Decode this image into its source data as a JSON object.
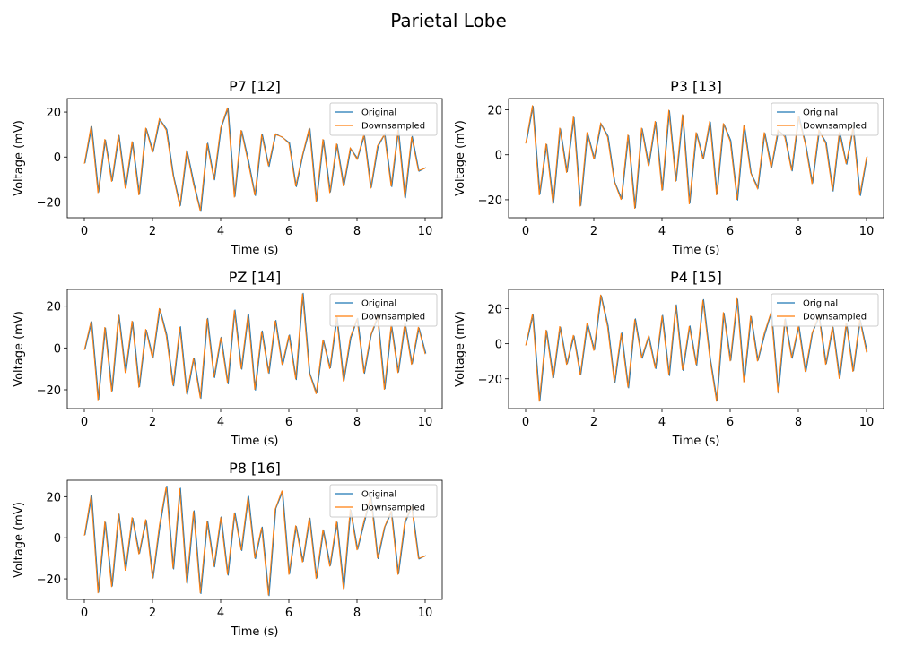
{
  "figure": {
    "title": "Parietal Lobe"
  },
  "chart_data": [
    {
      "type": "line",
      "title": "P7 [12]",
      "xlabel": "Time (s)",
      "ylabel": "Voltage (mV)",
      "xlim": [
        -0.5,
        10.5
      ],
      "ylim": [
        -27,
        26
      ],
      "xticks": [
        0,
        2,
        4,
        6,
        8,
        10
      ],
      "yticks": [
        -20,
        0,
        20
      ],
      "legend": "top-right",
      "series": [
        {
          "name": "Original",
          "color": "#1f77b4"
        },
        {
          "name": "Downsampled",
          "color": "#ff7f0e"
        }
      ],
      "x": [
        0,
        0.2,
        0.4,
        0.6,
        0.8,
        1.0,
        1.2,
        1.4,
        1.6,
        1.8,
        2.0,
        2.2,
        2.4,
        2.6,
        2.8,
        3.0,
        3.2,
        3.4,
        3.6,
        3.8,
        4.0,
        4.2,
        4.4,
        4.6,
        4.8,
        5.0,
        5.2,
        5.4,
        5.6,
        5.8,
        6.0,
        6.2,
        6.4,
        6.6,
        6.8,
        7.0,
        7.2,
        7.4,
        7.6,
        7.8,
        8.0,
        8.2,
        8.4,
        8.6,
        8.8,
        9.0,
        9.2,
        9.4,
        9.6,
        9.8,
        10.0
      ],
      "values": [
        -3,
        14,
        -16,
        8,
        -11,
        10,
        -14,
        7,
        -17,
        13,
        2,
        17,
        12,
        -8,
        -22,
        3,
        -12,
        -24,
        6,
        -10,
        13,
        22,
        -18,
        12,
        -2,
        -17,
        10,
        -4,
        10,
        9,
        6,
        -13,
        1,
        13,
        -20,
        8,
        -16,
        6,
        -13,
        4,
        -1,
        10,
        -14,
        5,
        10,
        -13,
        12,
        -18,
        9,
        -6,
        -5
      ]
    },
    {
      "type": "line",
      "title": "P3 [13]",
      "xlabel": "Time (s)",
      "ylabel": "Voltage (mV)",
      "xlim": [
        -0.5,
        10.5
      ],
      "ylim": [
        -28,
        25
      ],
      "xticks": [
        0,
        2,
        4,
        6,
        8,
        10
      ],
      "yticks": [
        -20,
        0,
        20
      ],
      "legend": "top-right",
      "series": [
        {
          "name": "Original",
          "color": "#1f77b4"
        },
        {
          "name": "Downsampled",
          "color": "#ff7f0e"
        }
      ],
      "x": [
        0,
        0.2,
        0.4,
        0.6,
        0.8,
        1.0,
        1.2,
        1.4,
        1.6,
        1.8,
        2.0,
        2.2,
        2.4,
        2.6,
        2.8,
        3.0,
        3.2,
        3.4,
        3.6,
        3.8,
        4.0,
        4.2,
        4.4,
        4.6,
        4.8,
        5.0,
        5.2,
        5.4,
        5.6,
        5.8,
        6.0,
        6.2,
        6.4,
        6.6,
        6.8,
        7.0,
        7.2,
        7.4,
        7.6,
        7.8,
        8.0,
        8.2,
        8.4,
        8.6,
        8.8,
        9.0,
        9.2,
        9.4,
        9.6,
        9.8,
        10.0
      ],
      "values": [
        5,
        22,
        -18,
        5,
        -22,
        12,
        -8,
        17,
        -23,
        10,
        -2,
        14,
        8,
        -12,
        -20,
        9,
        -24,
        12,
        -5,
        15,
        -16,
        20,
        -12,
        18,
        -22,
        10,
        -2,
        15,
        -18,
        14,
        6,
        -20,
        13,
        -8,
        -15,
        10,
        -6,
        11,
        8,
        -7,
        17,
        5,
        -13,
        11,
        5,
        -16,
        10,
        -4,
        12,
        -18,
        -1
      ]
    },
    {
      "type": "line",
      "title": "PZ [14]",
      "xlabel": "Time (s)",
      "ylabel": "Voltage (mV)",
      "xlim": [
        -0.5,
        10.5
      ],
      "ylim": [
        -29,
        28
      ],
      "xticks": [
        0,
        2,
        4,
        6,
        8,
        10
      ],
      "yticks": [
        -20,
        0,
        20
      ],
      "legend": "top-right",
      "series": [
        {
          "name": "Original",
          "color": "#1f77b4"
        },
        {
          "name": "Downsampled",
          "color": "#ff7f0e"
        }
      ],
      "x": [
        0,
        0.2,
        0.4,
        0.6,
        0.8,
        1.0,
        1.2,
        1.4,
        1.6,
        1.8,
        2.0,
        2.2,
        2.4,
        2.6,
        2.8,
        3.0,
        3.2,
        3.4,
        3.6,
        3.8,
        4.0,
        4.2,
        4.4,
        4.6,
        4.8,
        5.0,
        5.2,
        5.4,
        5.6,
        5.8,
        6.0,
        6.2,
        6.4,
        6.6,
        6.8,
        7.0,
        7.2,
        7.4,
        7.6,
        7.8,
        8.0,
        8.2,
        8.4,
        8.6,
        8.8,
        9.0,
        9.2,
        9.4,
        9.6,
        9.8,
        10.0
      ],
      "values": [
        -1,
        13,
        -25,
        10,
        -21,
        16,
        -12,
        13,
        -19,
        9,
        -5,
        19,
        6,
        -18,
        10,
        -22,
        -5,
        -24,
        14,
        -14,
        5,
        -17,
        18,
        -10,
        16,
        -20,
        8,
        -12,
        13,
        -8,
        6,
        -15,
        26,
        -12,
        -22,
        4,
        -10,
        15,
        -16,
        5,
        14,
        -12,
        6,
        15,
        -20,
        11,
        -12,
        12,
        -8,
        10,
        -3
      ]
    },
    {
      "type": "line",
      "title": "P4 [15]",
      "xlabel": "Time (s)",
      "ylabel": "Voltage (mV)",
      "xlim": [
        -0.5,
        10.5
      ],
      "ylim": [
        -37,
        31
      ],
      "xticks": [
        0,
        2,
        4,
        6,
        8,
        10
      ],
      "yticks": [
        -20,
        0,
        20
      ],
      "legend": "top-right",
      "series": [
        {
          "name": "Original",
          "color": "#1f77b4"
        },
        {
          "name": "Downsampled",
          "color": "#ff7f0e"
        }
      ],
      "x": [
        0,
        0.2,
        0.4,
        0.6,
        0.8,
        1.0,
        1.2,
        1.4,
        1.6,
        1.8,
        2.0,
        2.2,
        2.4,
        2.6,
        2.8,
        3.0,
        3.2,
        3.4,
        3.6,
        3.8,
        4.0,
        4.2,
        4.4,
        4.6,
        4.8,
        5.0,
        5.2,
        5.4,
        5.6,
        5.8,
        6.0,
        6.2,
        6.4,
        6.6,
        6.8,
        7.0,
        7.2,
        7.4,
        7.6,
        7.8,
        8.0,
        8.2,
        8.4,
        8.6,
        8.8,
        9.0,
        9.2,
        9.4,
        9.6,
        9.8,
        10.0
      ],
      "values": [
        -1,
        17,
        -33,
        8,
        -20,
        10,
        -12,
        5,
        -18,
        12,
        -4,
        28,
        10,
        -22,
        6,
        -25,
        14,
        -8,
        4,
        -14,
        16,
        -18,
        22,
        -15,
        10,
        -12,
        25,
        -8,
        -33,
        18,
        -10,
        26,
        -22,
        16,
        -10,
        6,
        18,
        -28,
        14,
        -8,
        10,
        -16,
        6,
        16,
        -12,
        10,
        -20,
        12,
        -16,
        14,
        -5
      ]
    },
    {
      "type": "line",
      "title": "P8 [16]",
      "xlabel": "Time (s)",
      "ylabel": "Voltage (mV)",
      "xlim": [
        -0.5,
        10.5
      ],
      "ylim": [
        -30,
        28
      ],
      "xticks": [
        0,
        2,
        4,
        6,
        8,
        10
      ],
      "yticks": [
        -20,
        0,
        20
      ],
      "legend": "top-right",
      "series": [
        {
          "name": "Original",
          "color": "#1f77b4"
        },
        {
          "name": "Downsampled",
          "color": "#ff7f0e"
        }
      ],
      "x": [
        0,
        0.2,
        0.4,
        0.6,
        0.8,
        1.0,
        1.2,
        1.4,
        1.6,
        1.8,
        2.0,
        2.2,
        2.4,
        2.6,
        2.8,
        3.0,
        3.2,
        3.4,
        3.6,
        3.8,
        4.0,
        4.2,
        4.4,
        4.6,
        4.8,
        5.0,
        5.2,
        5.4,
        5.6,
        5.8,
        6.0,
        6.2,
        6.4,
        6.6,
        6.8,
        7.0,
        7.2,
        7.4,
        7.6,
        7.8,
        8.0,
        8.2,
        8.4,
        8.6,
        8.8,
        9.0,
        9.2,
        9.4,
        9.6,
        9.8,
        10.0
      ],
      "values": [
        1,
        21,
        -27,
        8,
        -24,
        12,
        -16,
        10,
        -8,
        9,
        -20,
        6,
        25,
        -15,
        24,
        -22,
        13,
        -27,
        8,
        -14,
        10,
        -18,
        12,
        -6,
        20,
        -10,
        5,
        -28,
        14,
        23,
        -18,
        6,
        -12,
        10,
        -20,
        4,
        -14,
        8,
        -25,
        14,
        -6,
        8,
        20,
        -10,
        5,
        13,
        -18,
        8,
        15,
        -10,
        -9
      ]
    }
  ]
}
